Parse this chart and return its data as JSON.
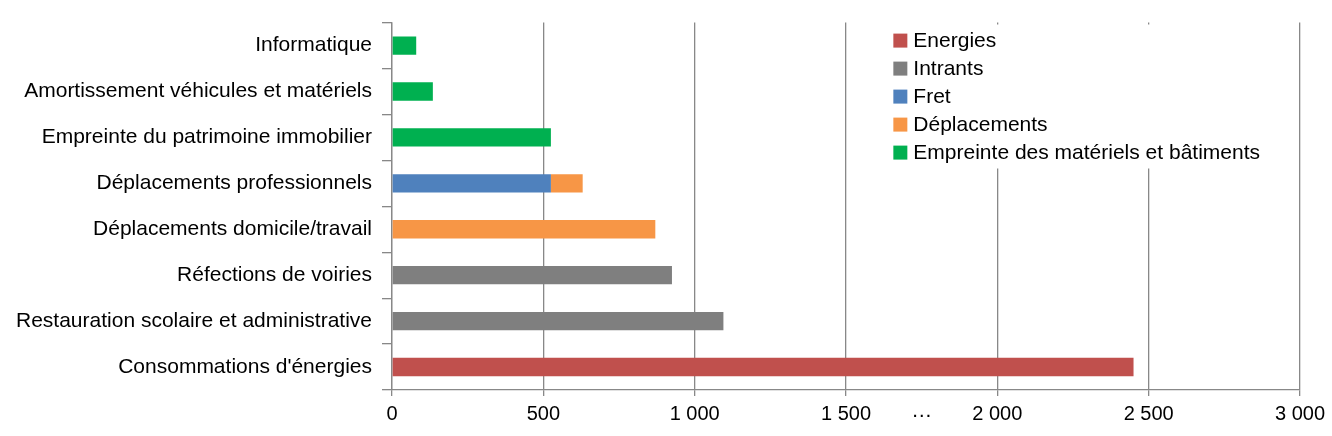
{
  "chart_data": {
    "type": "bar",
    "orientation": "horizontal",
    "stacked": true,
    "categories": [
      "Informatique",
      "Amortissement véhicules et matériels",
      "Empreinte du patrimoine immobilier",
      "Déplacements professionnels",
      "Déplacements domicile/travail",
      "Réfections de voiries",
      "Restauration scolaire et administrative",
      "Consommations d'énergies"
    ],
    "series": [
      {
        "name": "Energies",
        "color": "#c0504d",
        "values": [
          null,
          null,
          null,
          null,
          null,
          null,
          null,
          2450
        ]
      },
      {
        "name": "Intrants",
        "color": "#7f7f7f",
        "values": [
          null,
          null,
          null,
          null,
          null,
          925,
          1095,
          null
        ]
      },
      {
        "name": "Fret",
        "color": "#4f81bd",
        "values": [
          null,
          null,
          null,
          525,
          null,
          null,
          null,
          null
        ]
      },
      {
        "name": "Déplacements",
        "color": "#f79646",
        "values": [
          null,
          null,
          null,
          105,
          870,
          null,
          null,
          null
        ]
      },
      {
        "name": "Empreinte des matériels et bâtiments",
        "color": "#00b050",
        "values": [
          80,
          135,
          525,
          null,
          null,
          null,
          null,
          null
        ]
      }
    ],
    "xlim": [
      0,
      3000
    ],
    "xticks": [
      0,
      500,
      {
        "value": 1000,
        "label": "1 000"
      },
      {
        "value": 1500,
        "label": "1 500"
      },
      {
        "value": 2000,
        "label": "2 000"
      },
      {
        "value": 2500,
        "label": "2 500"
      },
      {
        "value": 3000,
        "label": "3 000"
      }
    ],
    "grid": "x",
    "legend": "top right",
    "annotations": [
      "…"
    ]
  }
}
